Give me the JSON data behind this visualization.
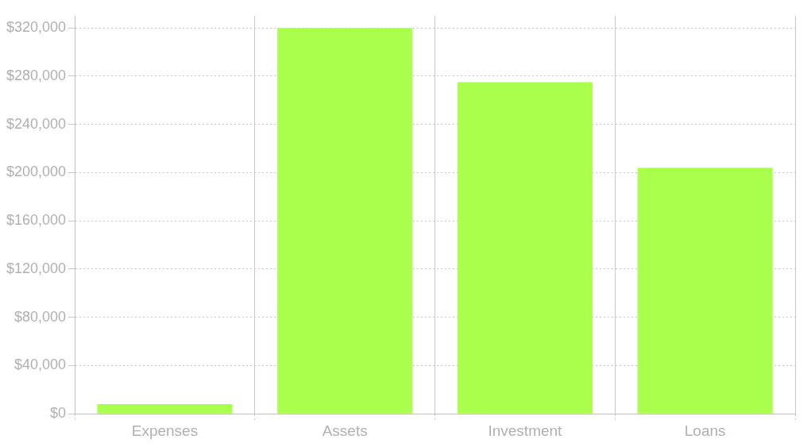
{
  "chart_data": {
    "type": "bar",
    "categories": [
      "Expenses",
      "Assets",
      "Investment",
      "Loans"
    ],
    "values": [
      8000,
      320000,
      275000,
      204000
    ],
    "color": "#aaff4c",
    "ylim": [
      0,
      330000
    ],
    "yticks": [
      {
        "value": 0,
        "label": "$0"
      },
      {
        "value": 40000,
        "label": "$40,000"
      },
      {
        "value": 80000,
        "label": "$80,000"
      },
      {
        "value": 120000,
        "label": "$120,000"
      },
      {
        "value": 160000,
        "label": "$160,000"
      },
      {
        "value": 200000,
        "label": "$200,000"
      },
      {
        "value": 240000,
        "label": "$240,000"
      },
      {
        "value": 280000,
        "label": "$280,000"
      },
      {
        "value": 320000,
        "label": "$320,000"
      }
    ],
    "grid": true
  }
}
